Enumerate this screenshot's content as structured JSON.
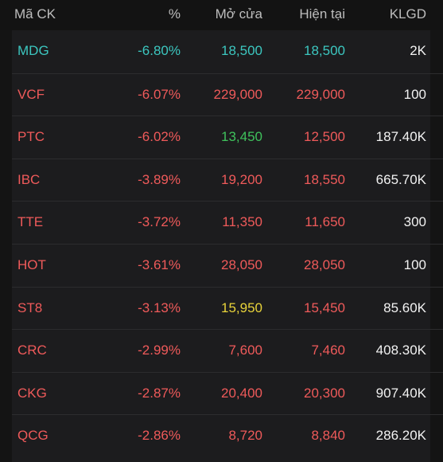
{
  "header": {
    "symbol": "Mã CK",
    "percent": "%",
    "open": "Mở cửa",
    "current": "Hiện tại",
    "volume": "KLGD"
  },
  "colors": {
    "floor": "#3cc7c0",
    "down": "#ef5a5a",
    "up": "#3fc15c",
    "reference": "#e8d33a",
    "volume": "#f2f2f2"
  },
  "rows": [
    {
      "symbol": "MDG",
      "percent": "-6.80%",
      "open": "18,500",
      "current": "18,500",
      "volume": "2K",
      "symbol_color": "#3cc7c0",
      "percent_color": "#3cc7c0",
      "open_color": "#3cc7c0",
      "current_color": "#3cc7c0"
    },
    {
      "symbol": "VCF",
      "percent": "-6.07%",
      "open": "229,000",
      "current": "229,000",
      "volume": "100",
      "symbol_color": "#ef5a5a",
      "percent_color": "#ef5a5a",
      "open_color": "#ef5a5a",
      "current_color": "#ef5a5a"
    },
    {
      "symbol": "PTC",
      "percent": "-6.02%",
      "open": "13,450",
      "current": "12,500",
      "volume": "187.40K",
      "symbol_color": "#ef5a5a",
      "percent_color": "#ef5a5a",
      "open_color": "#3fc15c",
      "current_color": "#ef5a5a"
    },
    {
      "symbol": "IBC",
      "percent": "-3.89%",
      "open": "19,200",
      "current": "18,550",
      "volume": "665.70K",
      "symbol_color": "#ef5a5a",
      "percent_color": "#ef5a5a",
      "open_color": "#ef5a5a",
      "current_color": "#ef5a5a"
    },
    {
      "symbol": "TTE",
      "percent": "-3.72%",
      "open": "11,350",
      "current": "11,650",
      "volume": "300",
      "symbol_color": "#ef5a5a",
      "percent_color": "#ef5a5a",
      "open_color": "#ef5a5a",
      "current_color": "#ef5a5a"
    },
    {
      "symbol": "HOT",
      "percent": "-3.61%",
      "open": "28,050",
      "current": "28,050",
      "volume": "100",
      "symbol_color": "#ef5a5a",
      "percent_color": "#ef5a5a",
      "open_color": "#ef5a5a",
      "current_color": "#ef5a5a"
    },
    {
      "symbol": "ST8",
      "percent": "-3.13%",
      "open": "15,950",
      "current": "15,450",
      "volume": "85.60K",
      "symbol_color": "#ef5a5a",
      "percent_color": "#ef5a5a",
      "open_color": "#e8d33a",
      "current_color": "#ef5a5a"
    },
    {
      "symbol": "CRC",
      "percent": "-2.99%",
      "open": "7,600",
      "current": "7,460",
      "volume": "408.30K",
      "symbol_color": "#ef5a5a",
      "percent_color": "#ef5a5a",
      "open_color": "#ef5a5a",
      "current_color": "#ef5a5a"
    },
    {
      "symbol": "CKG",
      "percent": "-2.87%",
      "open": "20,400",
      "current": "20,300",
      "volume": "907.40K",
      "symbol_color": "#ef5a5a",
      "percent_color": "#ef5a5a",
      "open_color": "#ef5a5a",
      "current_color": "#ef5a5a"
    },
    {
      "symbol": "QCG",
      "percent": "-2.86%",
      "open": "8,720",
      "current": "8,840",
      "volume": "286.20K",
      "symbol_color": "#ef5a5a",
      "percent_color": "#ef5a5a",
      "open_color": "#ef5a5a",
      "current_color": "#ef5a5a"
    }
  ]
}
